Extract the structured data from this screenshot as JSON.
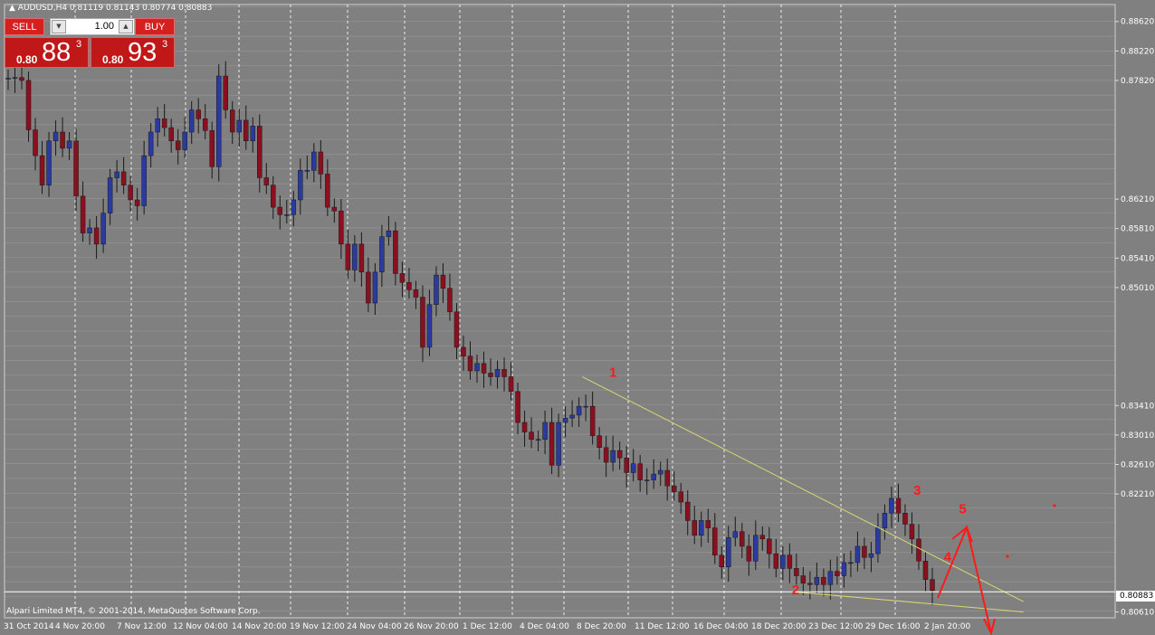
{
  "header": {
    "symbol_line": "AUDUSD,H4  0.81119 0.81143 0.80774 0.80883"
  },
  "trade_panel": {
    "sell_label": "SELL",
    "buy_label": "BUY",
    "lot_value": "1.00",
    "sell_quote": {
      "prefix": "0.80",
      "big": "88",
      "sup": "3"
    },
    "buy_quote": {
      "prefix": "0.80",
      "big": "93",
      "sup": "3"
    }
  },
  "copyright": "Alpari Limited MT4, © 2001-2014, MetaQuotes Software Corp.",
  "current_price": "0.80883",
  "colors": {
    "background": "#808080",
    "bull_candle": "#2a3aa0",
    "bear_candle": "#8a1020",
    "grid": "#b0b0b0",
    "trendline": "#d8d870",
    "annotation": "#ff1a1a",
    "axis_text": "#ffffff"
  },
  "chart_data": {
    "type": "candlestick",
    "symbol": "AUDUSD",
    "timeframe": "H4",
    "ylim": [
      0.8053,
      0.8885
    ],
    "yticks": [
      0.8862,
      0.8822,
      0.8782,
      0.8621,
      0.8581,
      0.8541,
      0.8501,
      0.8341,
      0.8301,
      0.8261,
      0.8221,
      0.8061
    ],
    "ytick_labels": [
      "0.88620",
      "0.88220",
      "0.87820",
      "0.86210",
      "0.85810",
      "0.85410",
      "0.85010",
      "0.83410",
      "0.83010",
      "0.82610",
      "0.82210",
      "0.80610"
    ],
    "xticks": [
      "31 Oct 2014",
      "4 Nov 20:00",
      "7 Nov 12:00",
      "12 Nov 04:00",
      "14 Nov 20:00",
      "19 Nov 12:00",
      "24 Nov 04:00",
      "26 Nov 20:00",
      "1 Dec 12:00",
      "4 Dec 04:00",
      "8 Dec 20:00",
      "11 Dec 12:00",
      "16 Dec 04:00",
      "18 Dec 20:00",
      "23 Dec 12:00",
      "29 Dec 16:00",
      "2 Jan 20:00"
    ],
    "close_path": [
      0.8785,
      0.8786,
      0.8782,
      0.8715,
      0.868,
      0.864,
      0.87,
      0.8712,
      0.869,
      0.87,
      0.8625,
      0.8575,
      0.8582,
      0.856,
      0.8602,
      0.865,
      0.8658,
      0.864,
      0.862,
      0.8612,
      0.868,
      0.8712,
      0.873,
      0.8718,
      0.87,
      0.8688,
      0.8712,
      0.8742,
      0.873,
      0.8714,
      0.8665,
      0.8788,
      0.8742,
      0.8712,
      0.8728,
      0.87,
      0.872,
      0.865,
      0.864,
      0.861,
      0.86,
      0.86,
      0.862,
      0.866,
      0.866,
      0.8685,
      0.8655,
      0.861,
      0.8605,
      0.856,
      0.8525,
      0.856,
      0.8522,
      0.848,
      0.8522,
      0.857,
      0.8578,
      0.852,
      0.8508,
      0.8498,
      0.8488,
      0.842,
      0.8478,
      0.8518,
      0.85,
      0.8468,
      0.842,
      0.8408,
      0.8388,
      0.8398,
      0.8385,
      0.838,
      0.839,
      0.838,
      0.836,
      0.8318,
      0.8305,
      0.8295,
      0.8295,
      0.8318,
      0.826,
      0.8318,
      0.8324,
      0.8328,
      0.834,
      0.834,
      0.83,
      0.8284,
      0.8264,
      0.828,
      0.827,
      0.825,
      0.8262,
      0.824,
      0.824,
      0.8248,
      0.8253,
      0.8232,
      0.8224,
      0.821,
      0.8185,
      0.8165,
      0.8185,
      0.8175,
      0.8138,
      0.8122,
      0.8162,
      0.817,
      0.815,
      0.813,
      0.8165,
      0.816,
      0.814,
      0.812,
      0.8138,
      0.812,
      0.811,
      0.81,
      0.8098,
      0.8108,
      0.8098,
      0.8116,
      0.811,
      0.8128,
      0.8128,
      0.815,
      0.8135,
      0.814,
      0.8175,
      0.8195,
      0.8215,
      0.8195,
      0.818,
      0.816,
      0.813,
      0.8105,
      0.809
    ],
    "trendlines": [
      {
        "from": {
          "date": "8 Dec 2014",
          "price": 0.838
        },
        "to": {
          "date": "6 Jan 2015",
          "price": 0.8075
        }
      },
      {
        "from": {
          "date": "22 Dec 2014",
          "price": 0.8088
        },
        "to": {
          "date": "6 Jan 2015",
          "price": 0.8061
        }
      }
    ],
    "wave_labels": [
      {
        "text": "1",
        "date": "10 Dec 2014",
        "price": 0.838
      },
      {
        "text": "2",
        "date": "22 Dec 2014",
        "price": 0.8085
      },
      {
        "text": "3",
        "date": "30 Dec 2014",
        "price": 0.822
      },
      {
        "text": "4",
        "date": "1 Jan 2015",
        "price": 0.813
      },
      {
        "text": "5",
        "date": "2 Jan 2015",
        "price": 0.8195
      }
    ]
  }
}
